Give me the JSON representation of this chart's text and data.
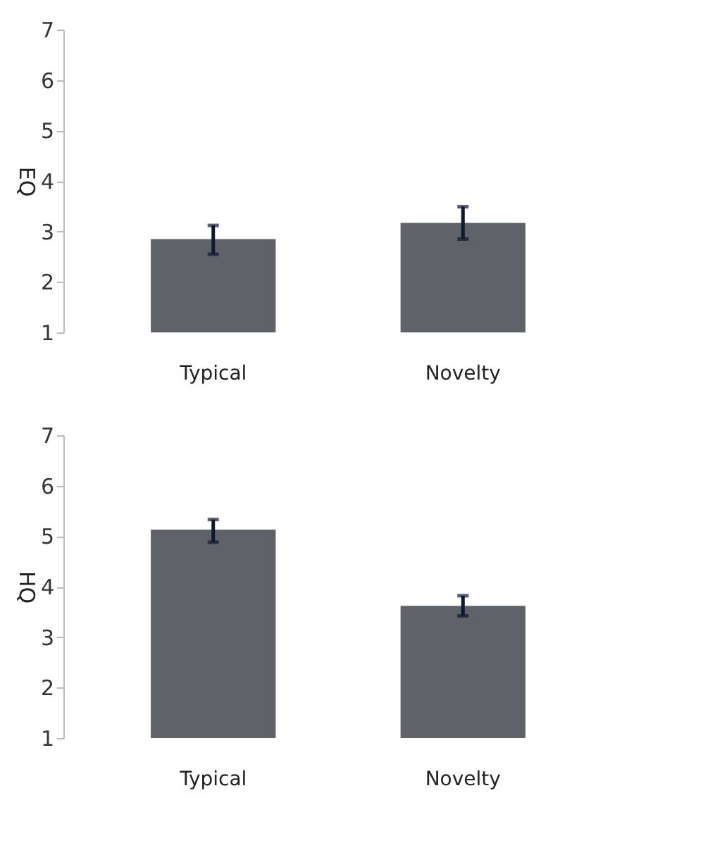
{
  "chart_data": [
    {
      "type": "bar",
      "ylabel": "EQ",
      "categories": [
        "Typical",
        "Novelty"
      ],
      "values": [
        2.85,
        3.17
      ],
      "color": "#5f6268",
      "errors": [
        [
          2.55,
          3.12
        ],
        [
          2.85,
          3.49
        ]
      ],
      "ylim": [
        1,
        7
      ],
      "yticks": [
        1,
        2,
        3,
        4,
        5,
        6,
        7
      ],
      "grid": false,
      "legend": false
    },
    {
      "type": "bar",
      "ylabel": "HQ",
      "categories": [
        "Typical",
        "Novelty"
      ],
      "values": [
        5.13,
        3.62
      ],
      "color": "#5f6268",
      "errors": [
        [
          4.88,
          5.33
        ],
        [
          3.42,
          3.82
        ]
      ],
      "ylim": [
        1,
        7
      ],
      "yticks": [
        1,
        2,
        3,
        4,
        5,
        6,
        7
      ],
      "grid": false,
      "legend": false
    }
  ]
}
